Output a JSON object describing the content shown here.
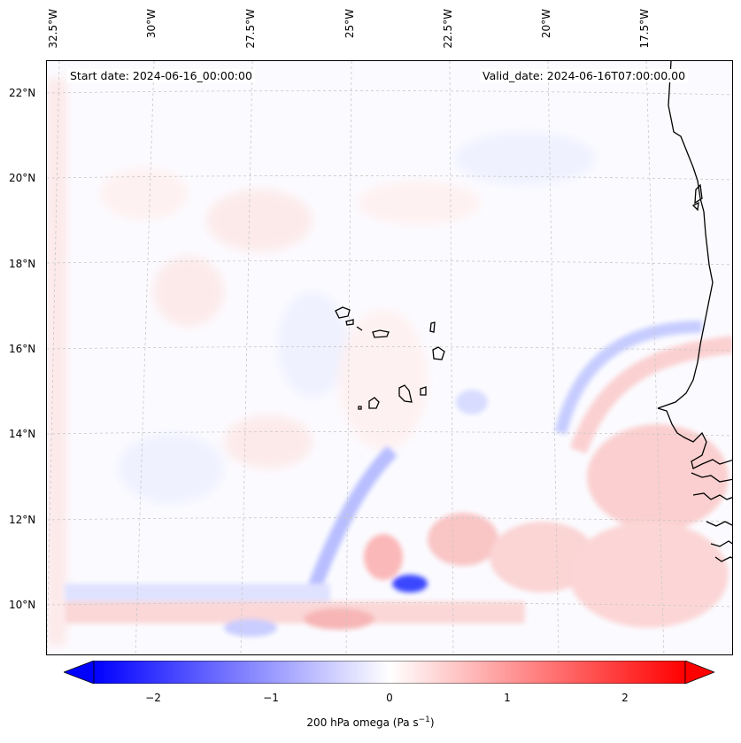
{
  "header": {
    "start_date": "Start date: 2024-06-16_00:00:00",
    "valid_date": "Valid_date: 2024-06-16T07:00:00.00"
  },
  "lon_labels": [
    "32.5°W",
    "30°W",
    "27.5°W",
    "25°W",
    "22.5°W",
    "20°W",
    "17.5°W"
  ],
  "lat_labels": [
    "22°N",
    "20°N",
    "18°N",
    "16°N",
    "14°N",
    "12°N",
    "10°N"
  ],
  "colorbar": {
    "ticks": [
      "−2",
      "−1",
      "0",
      "1",
      "2"
    ],
    "label": "200 hPa omega (Pa s",
    "label_sup": "−1",
    "label_close": ")",
    "min_color": "#0000ff",
    "mid_color": "#ffffff",
    "max_color": "#ff0000"
  },
  "map_colors": {
    "background": "#fbfbff",
    "coastline": "#000000",
    "gridline": "#c8c8c8"
  }
}
